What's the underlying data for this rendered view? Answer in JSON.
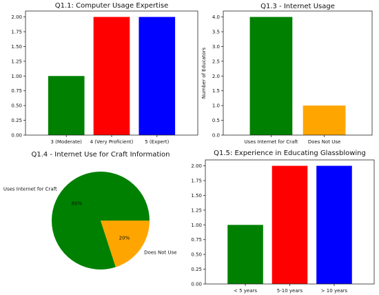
{
  "chart_data": [
    {
      "type": "bar",
      "title": "Q1.1: Computer Usage Expertise",
      "xlabel": "",
      "ylabel": "",
      "categories": [
        "3 (Moderate)",
        "4 (Very Proficient)",
        "5 (Expert)"
      ],
      "values": [
        1.0,
        2.0,
        2.0
      ],
      "colors": [
        "#008000",
        "#ff0000",
        "#0000ff"
      ],
      "ylim": [
        0,
        2.1
      ],
      "yticks": [
        "0.00",
        "0.25",
        "0.50",
        "0.75",
        "1.00",
        "1.25",
        "1.50",
        "1.75",
        "2.00"
      ],
      "grid": false
    },
    {
      "type": "bar",
      "title": "Q1.3 - Internet Usage",
      "xlabel": "",
      "ylabel": "Number of Educators",
      "categories": [
        "Uses Internet for Craft",
        "Does Not Use"
      ],
      "values": [
        4.0,
        1.0
      ],
      "colors": [
        "#008000",
        "#ffa500"
      ],
      "ylim": [
        0,
        4.2
      ],
      "yticks": [
        "0.0",
        "0.5",
        "1.0",
        "1.5",
        "2.0",
        "2.5",
        "3.0",
        "3.5",
        "4.0"
      ],
      "grid": false
    },
    {
      "type": "pie",
      "title": "Q1.4 - Internet Use for Craft Information",
      "labels": [
        "Uses Internet for Craft",
        "Does Not Use"
      ],
      "values": [
        80,
        20
      ],
      "pct_labels": [
        "80%",
        "20%"
      ],
      "colors": [
        "#008000",
        "#ffa500"
      ]
    },
    {
      "type": "bar",
      "title": "Q1.5: Experience in Educating Glassblowing",
      "xlabel": "",
      "ylabel": "",
      "categories": [
        "< 5 years",
        "5-10 years",
        "> 10 years"
      ],
      "values": [
        1.0,
        2.0,
        2.0
      ],
      "colors": [
        "#008000",
        "#ff0000",
        "#0000ff"
      ],
      "ylim": [
        0,
        2.1
      ],
      "yticks": [
        "0.00",
        "0.25",
        "0.50",
        "0.75",
        "1.00",
        "1.25",
        "1.50",
        "1.75",
        "2.00"
      ],
      "grid": false
    }
  ]
}
